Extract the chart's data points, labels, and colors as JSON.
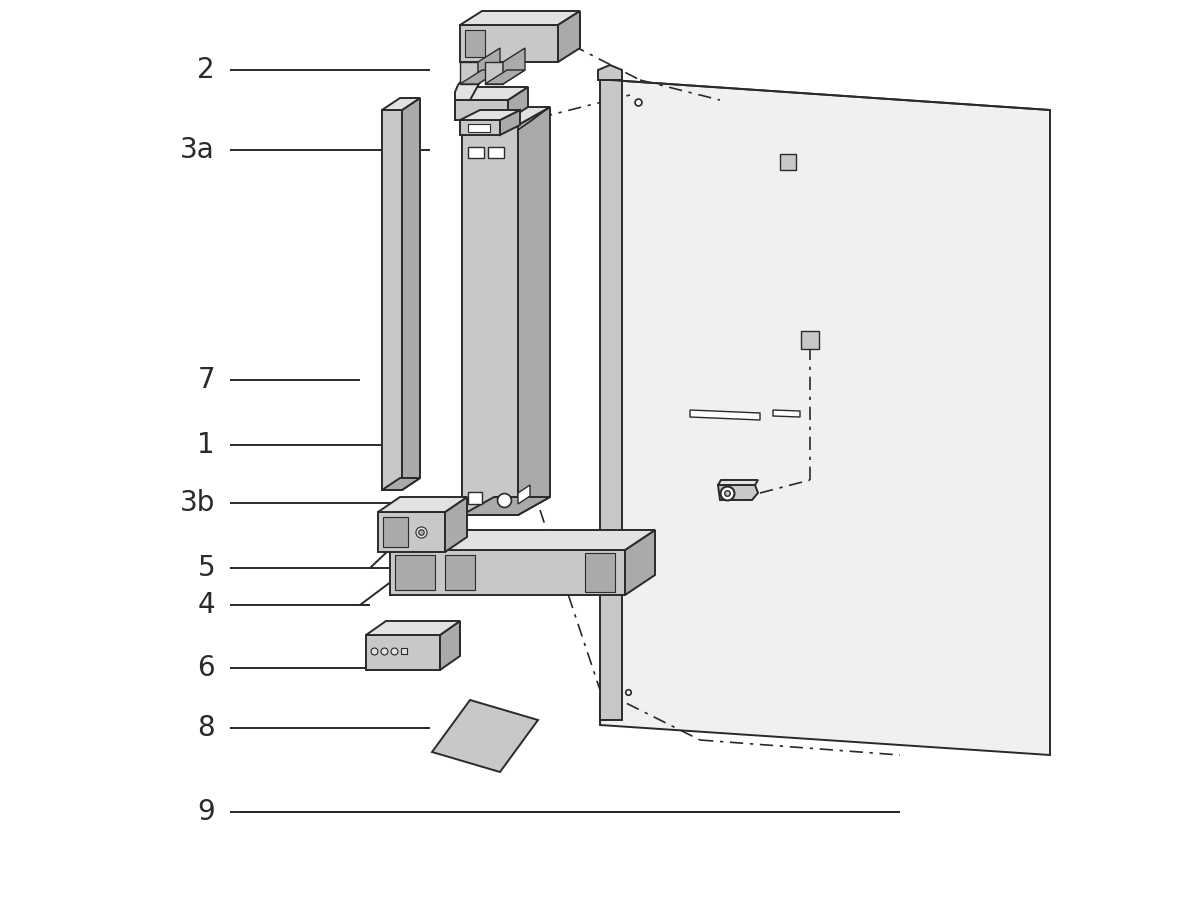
{
  "bg_color": "#ffffff",
  "lc": "#2a2a2a",
  "fc": "#c8c8c8",
  "fl": "#e2e2e2",
  "fd": "#aaaaaa",
  "fw": "#f5f5f5",
  "label_fs": 20,
  "lw": 1.4
}
